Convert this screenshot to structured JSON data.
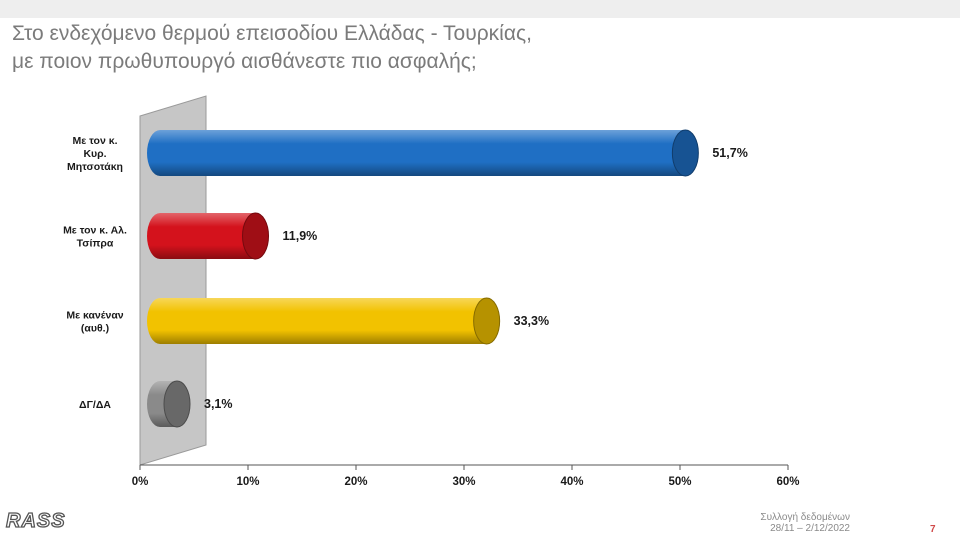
{
  "title": {
    "line1": "Στο ενδεχόμενο θερμού επεισοδίου Ελλάδας - Τουρκίας,",
    "line2": "με ποιον πρωθυπουργό αισθάνεστε πιο ασφαλής;"
  },
  "chart_data": {
    "type": "bar",
    "orientation": "horizontal",
    "title": "Στο ενδεχόμενο θερμού επεισοδίου Ελλάδας - Τουρκίας, με ποιον πρωθυπουργό αισθάνεστε πιο ασφαλής;",
    "categories": [
      [
        "Με τον κ.",
        "Κυρ.",
        "Μητσοτάκη"
      ],
      [
        "Με τον κ. Αλ.",
        "Τσίπρα"
      ],
      [
        "Με κανέναν",
        "(αυθ.)"
      ],
      [
        "ΔΓ/ΔΑ"
      ]
    ],
    "values": [
      51.7,
      11.9,
      33.3,
      3.1
    ],
    "value_labels": [
      "51,7%",
      "11,9%",
      "33,3%",
      "3,1%"
    ],
    "colors": [
      "#1f6fc4",
      "#d4121c",
      "#f2c200",
      "#8a8a8a"
    ],
    "xlim": [
      0,
      60
    ],
    "x_ticks": [
      0,
      10,
      20,
      30,
      40,
      50,
      60
    ],
    "x_tick_labels": [
      "0%",
      "10%",
      "20%",
      "30%",
      "40%",
      "50%",
      "60%"
    ],
    "grid": false,
    "legend": "none"
  },
  "footer": {
    "logo": "RASS",
    "note_line1": "Συλλογή δεδομένων",
    "note_line2": "28/11 – 2/12/2022",
    "page": "7"
  }
}
